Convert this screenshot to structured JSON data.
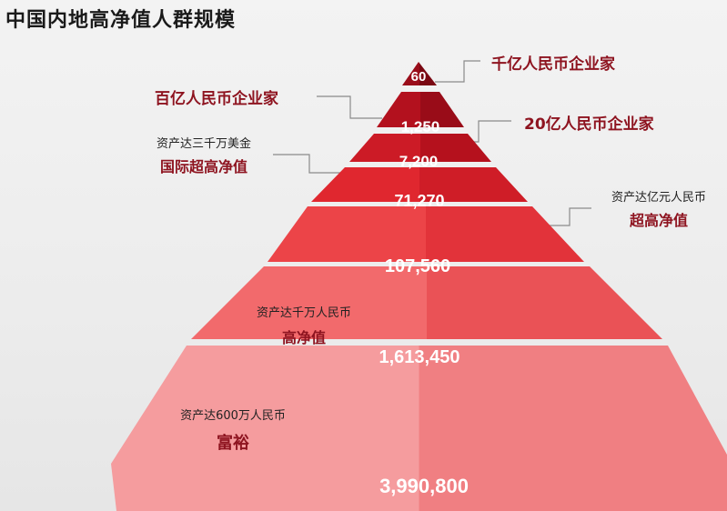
{
  "title": "中国内地高净值人群规模",
  "tiers": [
    {
      "value": "60"
    },
    {
      "value": "1,250"
    },
    {
      "value": "7,200"
    },
    {
      "value": "71,270"
    },
    {
      "value": "107,560"
    },
    {
      "value": "1,613,450"
    },
    {
      "value": "3,990,800"
    }
  ],
  "annotations": {
    "qianyi": "千亿人民币企业家",
    "baiyi": "百亿人民币企业家",
    "ershiyi": "20亿人民币企业家",
    "sanqianwan_small": "资产达三千万美金",
    "sanqianwan_big": "国际超高净值",
    "yiyuan_small": "资产达亿元人民币",
    "yiyuan_big": "超高净值",
    "qianwan_small": "资产达千万人民币",
    "qianwan_big": "高净值",
    "liubaiwan_small": "资产达600万人民币",
    "liubaiwan_big": "富裕"
  },
  "colors": {
    "tier_top": "#8a0a17",
    "tier_bottom": "#f29a9c",
    "label_red": "#8e1420"
  }
}
